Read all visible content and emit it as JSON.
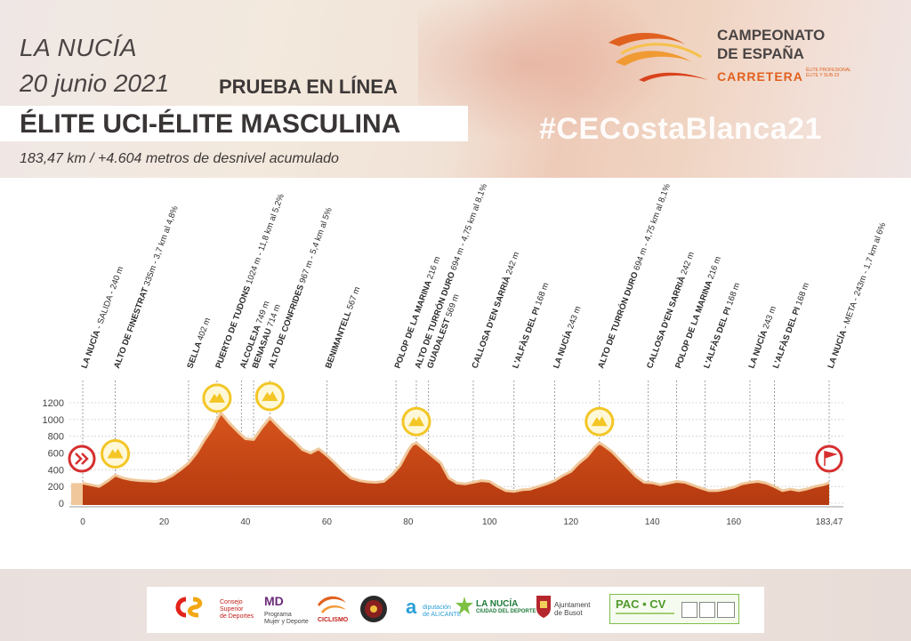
{
  "header": {
    "city": "LA NUCÍA",
    "date": "20 junio 2021",
    "race_type": "PRUEBA EN LÍNEA",
    "category": "ÉLITE UCI-ÉLITE MASCULINA",
    "distance_line": "183,47 km / +4.604 metros de desnivel acumulado",
    "hashtag": "#CECostaBlanca21"
  },
  "logo": {
    "line1": "CAMPEONATO",
    "line2": "DE ESPAÑA",
    "line3": "CARRETERA",
    "line4": "ÉLITE PROFESIONAL",
    "line5": "ÉLITE Y SUB-23"
  },
  "colors": {
    "profile_fill": "#d8551c",
    "profile_dark": "#b53a10",
    "profile_edge": "#f0c79a",
    "climb_marker": "#f3c626",
    "start_finish_marker": "#d62f2f",
    "text": "#3d3838",
    "accent": "#e0611f"
  },
  "chart_data": {
    "type": "area",
    "title": "",
    "xlabel": "",
    "ylabel": "",
    "xlim": [
      0,
      183.47
    ],
    "ylim": [
      0,
      1200
    ],
    "y_ticks": [
      "0",
      "200",
      "400",
      "600",
      "800",
      "1000",
      "1200"
    ],
    "x_ticks": [
      {
        "value": 0,
        "label": "0"
      },
      {
        "value": 20,
        "label": "20"
      },
      {
        "value": 40,
        "label": "40"
      },
      {
        "value": 60,
        "label": "60"
      },
      {
        "value": 80,
        "label": "80"
      },
      {
        "value": 100,
        "label": "100"
      },
      {
        "value": 120,
        "label": "120"
      },
      {
        "value": 140,
        "label": "140"
      },
      {
        "value": 160,
        "label": "160"
      },
      {
        "value": 183.47,
        "label": "183,47"
      }
    ],
    "grid": true,
    "series": [
      {
        "x": [
          0,
          2,
          4,
          6,
          8,
          10,
          12,
          14,
          16,
          18,
          20,
          22,
          24,
          26,
          28,
          30,
          32,
          33,
          34,
          36,
          38,
          40,
          42,
          44,
          46,
          48,
          50,
          52,
          54,
          56,
          58,
          60,
          62,
          64,
          66,
          68,
          70,
          72,
          74,
          76,
          78,
          80,
          81,
          82,
          84,
          86,
          88,
          90,
          92,
          94,
          96,
          98,
          100,
          102,
          104,
          106,
          108,
          110,
          112,
          114,
          116,
          118,
          120,
          122,
          124,
          126,
          127,
          128,
          130,
          132,
          134,
          136,
          138,
          140,
          142,
          144,
          146,
          148,
          150,
          152,
          154,
          156,
          158,
          160,
          162,
          164,
          166,
          168,
          170,
          172,
          174,
          176,
          178,
          180,
          182,
          183.47
        ],
        "y": [
          240,
          220,
          200,
          260,
          335,
          300,
          280,
          270,
          265,
          260,
          280,
          330,
          400,
          480,
          600,
          760,
          900,
          1000,
          1080,
          960,
          860,
          770,
          760,
          900,
          1020,
          920,
          820,
          740,
          640,
          600,
          650,
          570,
          480,
          380,
          300,
          270,
          255,
          250,
          260,
          340,
          450,
          630,
          700,
          720,
          640,
          560,
          480,
          300,
          240,
          230,
          250,
          270,
          260,
          200,
          150,
          140,
          160,
          168,
          200,
          230,
          270,
          330,
          380,
          480,
          560,
          680,
          720,
          690,
          620,
          520,
          420,
          320,
          250,
          243,
          220,
          240,
          260,
          250,
          216,
          180,
          150,
          150,
          168,
          190,
          230,
          250,
          260,
          240,
          200,
          150,
          168,
          150,
          170,
          200,
          220,
          243
        ]
      }
    ],
    "annotations": [
      {
        "km": 0,
        "name": "LA NUCÍA",
        "detail": "- SALIDA - 240 m",
        "marker": "start"
      },
      {
        "km": 8,
        "name": "ALTO DE FINESTRAT",
        "detail": "335m - 3,7 km al 4,8%",
        "marker": "climb"
      },
      {
        "km": 26,
        "name": "SELLA",
        "detail": "402 m"
      },
      {
        "km": 33,
        "name": "PUERTO DE TUDONS",
        "detail": "1024 m - 11,8 km al 5,2%",
        "marker": "climb"
      },
      {
        "km": 39,
        "name": "ALCOLEJA",
        "detail": "749 m"
      },
      {
        "km": 42,
        "name": "BENASAU",
        "detail": "714 m"
      },
      {
        "km": 46,
        "name": "ALTO DE CONFRIDES",
        "detail": "967 m - 5,4 km al 5%",
        "marker": "climb"
      },
      {
        "km": 60,
        "name": "BENIMANTELL",
        "detail": "567 m"
      },
      {
        "km": 77,
        "name": "POLOP DE LA MARINA",
        "detail": "216 m"
      },
      {
        "km": 82,
        "name": "ALTO DE TURRÓN DURO",
        "detail": "694 m - 4,75 km al 8,1%",
        "marker": "climb"
      },
      {
        "km": 85,
        "name": "GUADALEST",
        "detail": "569 m"
      },
      {
        "km": 96,
        "name": "CALLOSA D'EN SARRIÀ",
        "detail": "242 m"
      },
      {
        "km": 106,
        "name": "L'ALFÀS DEL PI",
        "detail": "168 m"
      },
      {
        "km": 116,
        "name": "LA NUCÍA",
        "detail": "243 m"
      },
      {
        "km": 127,
        "name": "ALTO DE TURRÓN DURO",
        "detail": "694 m - 4,75 km al 8,1%",
        "marker": "climb"
      },
      {
        "km": 139,
        "name": "CALLOSA D'EN SARRIÀ",
        "detail": "242 m"
      },
      {
        "km": 146,
        "name": "POLOP DE LA MARINA",
        "detail": "216 m"
      },
      {
        "km": 153,
        "name": "L'ALFÀS DEL PI",
        "detail": "168 m"
      },
      {
        "km": 164,
        "name": "LA NUCÍA",
        "detail": "243 m"
      },
      {
        "km": 170,
        "name": "L'ALFÀS DEL PI",
        "detail": "168 m"
      },
      {
        "km": 183.47,
        "name": "LA NUCÍA",
        "detail": "- META - 243m - 1,7 km al 6%",
        "marker": "finish"
      }
    ]
  },
  "sponsors": [
    {
      "id": "csd",
      "line1": "Consejo",
      "line2": "Superior",
      "line3": "de Deportes"
    },
    {
      "id": "mujer-deporte",
      "line1": "Programa",
      "line2": "Mujer y Deporte"
    },
    {
      "id": "rfec",
      "line1": "CICLISMO"
    },
    {
      "id": "circle"
    },
    {
      "id": "diputacion",
      "line1": "diputación",
      "line2": "de ALICANTE"
    },
    {
      "id": "la-nucia",
      "line1": "LA NUCÍA",
      "line2": "CIUDAD DEL DEPORTE"
    },
    {
      "id": "busot",
      "line1": "Ajuntament",
      "line2": "de Busot"
    },
    {
      "id": "pac-cv",
      "line1": "PAC • CV"
    }
  ]
}
